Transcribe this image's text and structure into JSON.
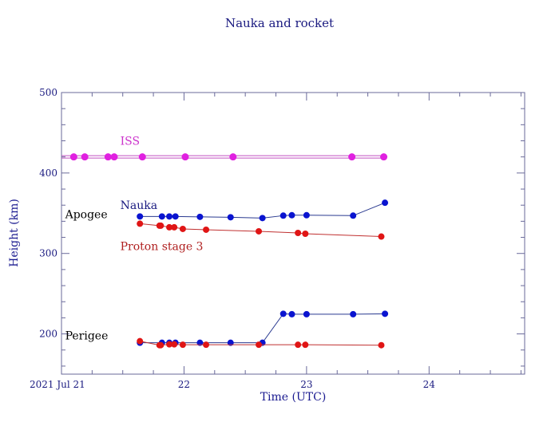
{
  "chart_data": {
    "type": "line",
    "title": "Nauka and rocket",
    "xlabel": "Time (UTC)",
    "ylabel": "Height (km)",
    "x_units": "day of July 2021 (UTC)",
    "xlim": [
      21.0,
      24.78
    ],
    "ylim": [
      150,
      500
    ],
    "x_ticks": [
      {
        "v": 21,
        "label": "2021 Jul 21"
      },
      {
        "v": 22,
        "label": "22"
      },
      {
        "v": 23,
        "label": "23"
      },
      {
        "v": 24,
        "label": "24"
      }
    ],
    "y_ticks": [
      {
        "v": 200,
        "label": "200"
      },
      {
        "v": 300,
        "label": "300"
      },
      {
        "v": 400,
        "label": "400"
      },
      {
        "v": 500,
        "label": "500"
      }
    ],
    "annotations": [
      {
        "text": "ISS",
        "color": "#cc33cc",
        "x": 21.48,
        "y": 435
      },
      {
        "text": "Nauka",
        "color": "#1a1a80",
        "x": 21.48,
        "y": 355
      },
      {
        "text": "Apogee",
        "color": "#000000",
        "x": 21.03,
        "y": 344
      },
      {
        "text": "Proton stage 3",
        "color": "#b02020",
        "x": 21.48,
        "y": 304
      },
      {
        "text": "Perigee",
        "color": "#000000",
        "x": 21.03,
        "y": 193
      }
    ],
    "series": [
      {
        "name": "ISS",
        "color": "#e020e0",
        "line": "#c050c0",
        "double": true,
        "x": [
          21.1,
          21.19,
          21.38,
          21.43,
          21.66,
          22.01,
          22.4,
          23.37,
          23.63
        ],
        "y": [
          420,
          420,
          420,
          420,
          420,
          420,
          420,
          420,
          420
        ],
        "extend_from": 21.0
      },
      {
        "name": "Nauka apogee",
        "color": "#0a14d0",
        "line": "#2a3a90",
        "x": [
          21.64,
          21.82,
          21.88,
          21.93,
          22.13,
          22.38,
          22.64,
          22.81,
          22.88,
          23.0,
          23.38,
          23.64
        ],
        "y": [
          346,
          346,
          346,
          346,
          345.5,
          345,
          344,
          347,
          347.5,
          347.5,
          347,
          363
        ]
      },
      {
        "name": "Proton stage 3 apogee",
        "color": "#e01515",
        "line": "#c03030",
        "x": [
          21.64,
          21.8,
          21.81,
          21.88,
          21.92,
          21.99,
          22.18,
          22.61,
          22.93,
          22.99,
          23.61
        ],
        "y": [
          337,
          334.5,
          334.5,
          332.5,
          332.5,
          330.5,
          329.5,
          327.5,
          325.5,
          324.5,
          321
        ]
      },
      {
        "name": "Nauka perigee",
        "color": "#0a14d0",
        "line": "#2a3a90",
        "x": [
          21.64,
          21.82,
          21.88,
          21.93,
          22.13,
          22.38,
          22.64,
          22.81,
          22.88,
          23.0,
          23.38,
          23.64
        ],
        "y": [
          189,
          189,
          189,
          189,
          189,
          189,
          189,
          225,
          224.5,
          224.5,
          224.5,
          225
        ]
      },
      {
        "name": "Proton stage 3 perigee",
        "color": "#e01515",
        "line": "#c03030",
        "x": [
          21.64,
          21.8,
          21.81,
          21.88,
          21.92,
          21.99,
          22.18,
          22.61,
          22.93,
          22.99,
          23.61
        ],
        "y": [
          191,
          186,
          186,
          187,
          187,
          186.5,
          186.5,
          186.5,
          186.5,
          186.5,
          186
        ]
      }
    ]
  }
}
